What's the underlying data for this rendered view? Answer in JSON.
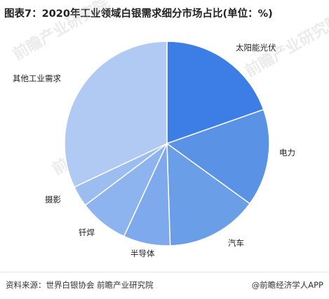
{
  "title": "图表7：2020年工业领域白银需求细分市场占比(单位：%)",
  "chart_data": {
    "type": "pie",
    "title": "图表7：2020年工业领域白银需求细分市场占比(单位：%)",
    "slices": [
      {
        "label": "太阳能光伏",
        "value": 19.6,
        "color": "#3d7ee6"
      },
      {
        "label": "电力",
        "value": 15.4,
        "color": "#5a92e6"
      },
      {
        "label": "汽车",
        "value": 14.5,
        "color": "#6a9fe8"
      },
      {
        "label": "半导体",
        "value": 7.4,
        "color": "#7eaaed"
      },
      {
        "label": "钎焊",
        "value": 7.8,
        "color": "#8db4ef"
      },
      {
        "label": "摄影",
        "value": 3.3,
        "color": "#9bbdf0"
      },
      {
        "label": "其他工业需求",
        "value": 32.0,
        "color": "#b0caf3"
      }
    ],
    "start_angle_deg": 0,
    "direction": "clockwise",
    "legend": "none"
  },
  "footer": {
    "source": "资料来源：世界白银协会 前瞻产业研究院",
    "brand": "@前瞻经济学人APP"
  }
}
